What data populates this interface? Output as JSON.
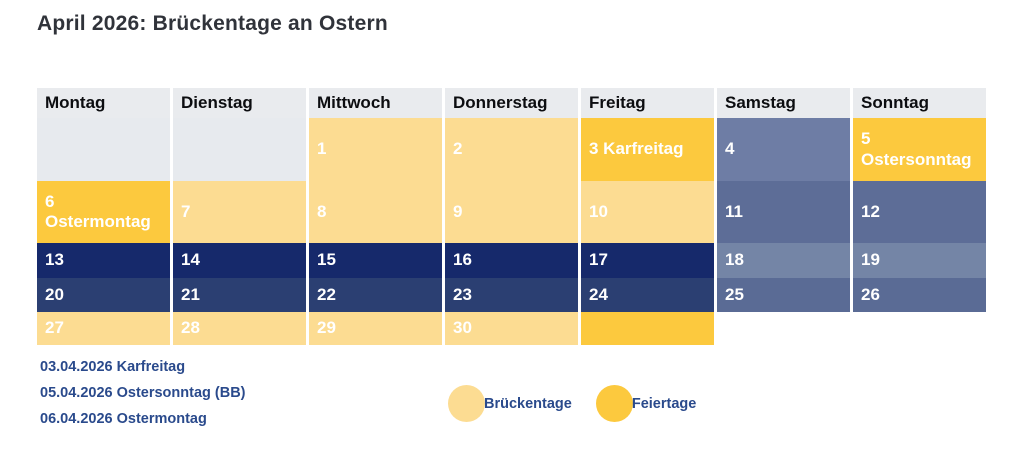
{
  "title": "April 2026: Brückentage an Ostern",
  "colors": {
    "header_bg": "#e9ebee",
    "empty": "#e7eaee",
    "bridge": "#fcdc92",
    "holiday": "#fcc93e",
    "weekday_week3": "#16296b",
    "weekday_week4": "#2b3f72",
    "weekend_week1": "#6e7da5",
    "weekend_week2": "#5d6d97",
    "weekend_week3": "#7485a6",
    "weekend_week4": "#5a6b95",
    "blank": "#ffffff",
    "title_text": "#30333a",
    "navy_text": "#2a4a8c",
    "cell_text": "#ffffff"
  },
  "calendar": {
    "day_headers": [
      "Montag",
      "Dienstag",
      "Mittwoch",
      "Donnerstag",
      "Freitag",
      "Samstag",
      "Sonntag"
    ],
    "weeks": [
      {
        "cells": [
          {
            "type": "empty",
            "label": ""
          },
          {
            "type": "empty",
            "label": ""
          },
          {
            "type": "bridge",
            "label": "1"
          },
          {
            "type": "bridge",
            "label": "2"
          },
          {
            "type": "holiday",
            "label": "3 Karfreitag"
          },
          {
            "type": "weekend_week1",
            "label": "4"
          },
          {
            "type": "holiday",
            "label": "5",
            "sublabel": "Ostersonntag"
          }
        ]
      },
      {
        "cells": [
          {
            "type": "holiday",
            "label": "6",
            "sublabel": "Ostermontag"
          },
          {
            "type": "bridge",
            "label": "7"
          },
          {
            "type": "bridge",
            "label": "8"
          },
          {
            "type": "bridge",
            "label": "9"
          },
          {
            "type": "bridge",
            "label": "10"
          },
          {
            "type": "weekend_week2",
            "label": "11"
          },
          {
            "type": "weekend_week2",
            "label": "12"
          }
        ]
      },
      {
        "cells": [
          {
            "type": "weekday_week3",
            "label": "13"
          },
          {
            "type": "weekday_week3",
            "label": "14"
          },
          {
            "type": "weekday_week3",
            "label": "15"
          },
          {
            "type": "weekday_week3",
            "label": "16"
          },
          {
            "type": "weekday_week3",
            "label": "17"
          },
          {
            "type": "weekend_week3",
            "label": "18"
          },
          {
            "type": "weekend_week3",
            "label": "19"
          }
        ]
      },
      {
        "cells": [
          {
            "type": "weekday_week4",
            "label": "20"
          },
          {
            "type": "weekday_week4",
            "label": "21"
          },
          {
            "type": "weekday_week4",
            "label": "22"
          },
          {
            "type": "weekday_week4",
            "label": "23"
          },
          {
            "type": "weekday_week4",
            "label": "24"
          },
          {
            "type": "weekend_week4",
            "label": "25"
          },
          {
            "type": "weekend_week4",
            "label": "26"
          }
        ]
      },
      {
        "cells": [
          {
            "type": "bridge",
            "label": "27"
          },
          {
            "type": "bridge",
            "label": "28"
          },
          {
            "type": "bridge",
            "label": "29"
          },
          {
            "type": "bridge",
            "label": "30"
          },
          {
            "type": "holiday",
            "label": ""
          },
          {
            "type": "blank",
            "label": ""
          },
          {
            "type": "blank",
            "label": ""
          }
        ]
      }
    ]
  },
  "holiday_list": [
    "03.04.2026 Karfreitag",
    "05.04.2026 Ostersonntag (BB)",
    "06.04.2026 Ostermontag"
  ],
  "legend": [
    {
      "label": "Brückentage",
      "color": "#fcdc92"
    },
    {
      "label": "Feiertage",
      "color": "#fcc93e"
    }
  ],
  "chart_data": {
    "type": "table",
    "title": "April 2026: Brückentage an Ostern",
    "columns": [
      "Montag",
      "Dienstag",
      "Mittwoch",
      "Donnerstag",
      "Freitag",
      "Samstag",
      "Sonntag"
    ],
    "rows": [
      [
        "",
        "",
        "1",
        "2",
        "3 Karfreitag",
        "4",
        "5 Ostersonntag"
      ],
      [
        "6 Ostermontag",
        "7",
        "8",
        "9",
        "10",
        "11",
        "12"
      ],
      [
        "13",
        "14",
        "15",
        "16",
        "17",
        "18",
        "19"
      ],
      [
        "20",
        "21",
        "22",
        "23",
        "24",
        "25",
        "26"
      ],
      [
        "27",
        "28",
        "29",
        "30",
        "",
        "",
        ""
      ]
    ],
    "bridge_days": [
      1,
      2,
      7,
      8,
      9,
      10,
      27,
      28,
      29,
      30
    ],
    "holidays": [
      {
        "date": "03.04.2026",
        "name": "Karfreitag",
        "day": 3
      },
      {
        "date": "05.04.2026",
        "name": "Ostersonntag (BB)",
        "day": 5
      },
      {
        "date": "06.04.2026",
        "name": "Ostermontag",
        "day": 6
      }
    ],
    "legend": [
      {
        "label": "Brückentage",
        "meaning": "bridge days"
      },
      {
        "label": "Feiertage",
        "meaning": "public holidays"
      }
    ],
    "legend_position": "bottom-center"
  }
}
